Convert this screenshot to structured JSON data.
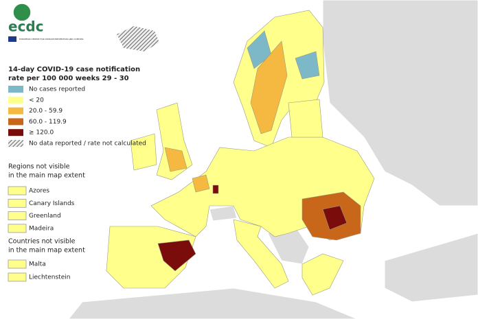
{
  "logo": {
    "text": "ecdc",
    "subtext": "EUROPEAN CENTRE FOR DISEASE PREVENTION AND CONTROL"
  },
  "legend": {
    "title_lines": [
      "14-day COVID-19 case notification",
      "rate per 100 000 weeks 29 - 30"
    ],
    "items": [
      {
        "label": "No cases reported",
        "color": "#7cb8c8"
      },
      {
        "label": "< 20",
        "color": "#ffff8c"
      },
      {
        "label": "20.0 - 59.9",
        "color": "#f5b840"
      },
      {
        "label": "60.0 - 119.9",
        "color": "#c8661a"
      },
      {
        "label": "≥ 120.0",
        "color": "#7a0c0c"
      },
      {
        "label": "No data reported / rate not calculated",
        "pattern": "hatch"
      }
    ]
  },
  "regions": {
    "heading_lines": [
      "Regions not visible",
      "in the main map extent"
    ],
    "items": [
      "Azores",
      "Canary Islands",
      "Greenland",
      "Madeira"
    ]
  },
  "countries": {
    "heading_lines": [
      "Countries not visible",
      "in the main map extent"
    ],
    "items": [
      "Malta",
      "Liechtenstein"
    ]
  }
}
